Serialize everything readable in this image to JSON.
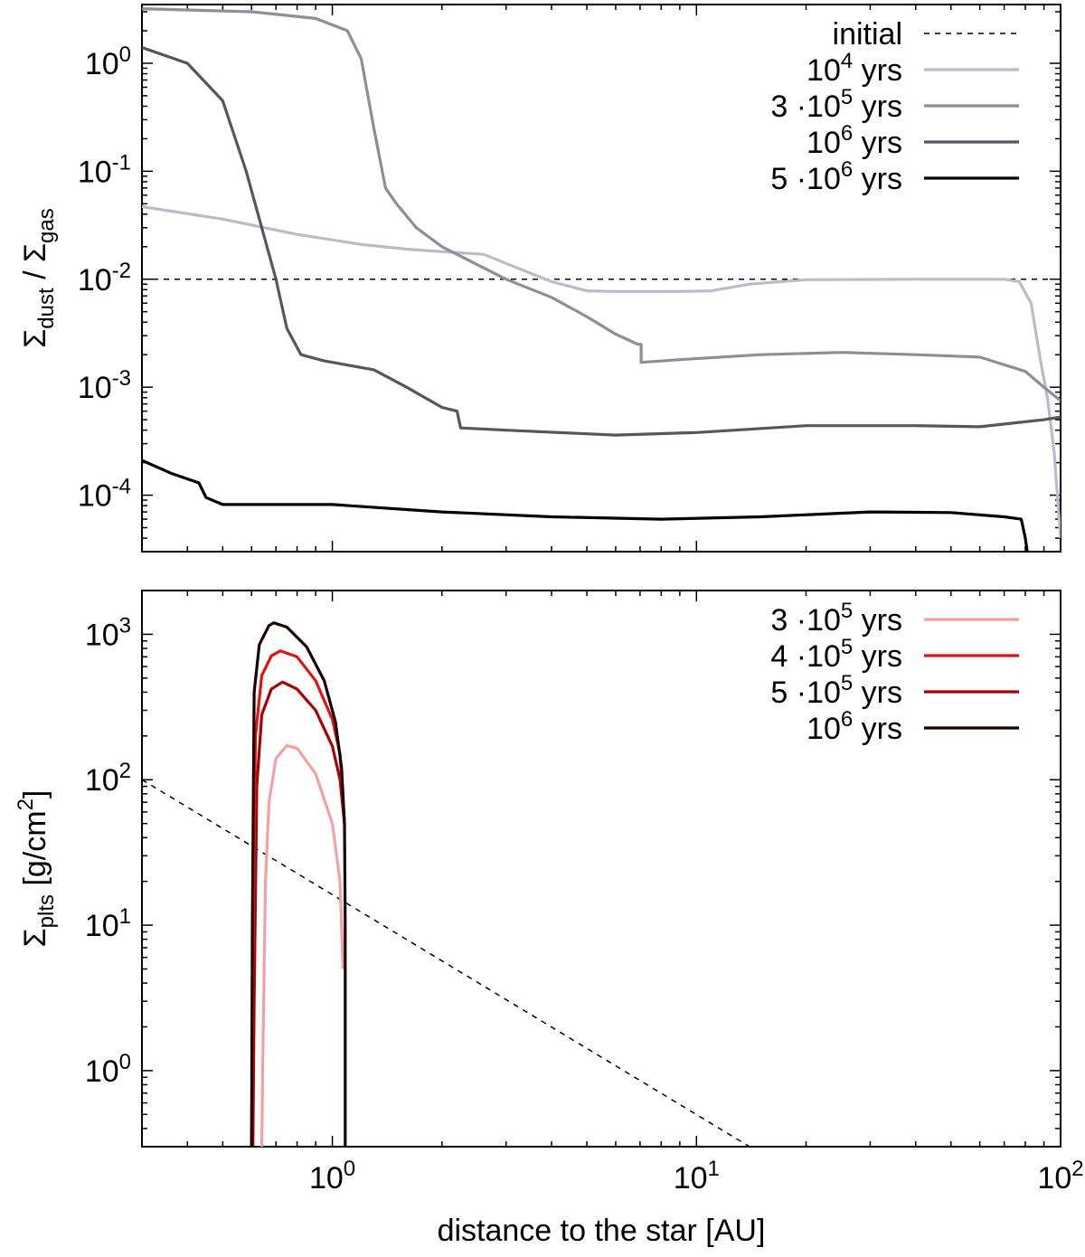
{
  "chart_data": [
    {
      "type": "line",
      "panel": "top",
      "xscale": "log",
      "yscale": "log",
      "xlim": [
        0.3,
        100
      ],
      "ylim": [
        3e-05,
        3.5
      ],
      "ylabel": {
        "base": "Σ",
        "sub1": "dust",
        "sep": " / ",
        "base2": "Σ",
        "sub2": "gas"
      },
      "yticks": [
        {
          "value": 0.0001,
          "base": "10",
          "exp": "-4"
        },
        {
          "value": 0.001,
          "base": "10",
          "exp": "-3"
        },
        {
          "value": 0.01,
          "base": "10",
          "exp": "-2"
        },
        {
          "value": 0.1,
          "base": "10",
          "exp": "-1"
        },
        {
          "value": 1,
          "base": "10",
          "exp": "0"
        }
      ],
      "legend_position": "top-right",
      "legend": [
        {
          "label": {
            "pre": "initial",
            "exp": "",
            "post": ""
          },
          "color": "#000000",
          "dashed": true
        },
        {
          "label": {
            "pre": "10",
            "exp": "4",
            "post": " yrs"
          },
          "color": "#bbbbc8"
        },
        {
          "label": {
            "pre": "3 ·10",
            "exp": "5",
            "post": " yrs"
          },
          "color": "#8e8e98"
        },
        {
          "label": {
            "pre": "10",
            "exp": "6",
            "post": " yrs"
          },
          "color": "#56565f"
        },
        {
          "label": {
            "pre": "5 ·10",
            "exp": "6",
            "post": " yrs"
          },
          "color": "#000000"
        }
      ],
      "series": [
        {
          "color": "#000000",
          "dashed": true,
          "points": [
            [
              0.3,
              0.01
            ],
            [
              100,
              0.01
            ]
          ]
        },
        {
          "color": "#bbbbc8",
          "points": [
            [
              0.3,
              0.047
            ],
            [
              0.5,
              0.036
            ],
            [
              0.8,
              0.026
            ],
            [
              1.2,
              0.021
            ],
            [
              1.6,
              0.019
            ],
            [
              2.0,
              0.018
            ],
            [
              2.6,
              0.017
            ],
            [
              3.0,
              0.014
            ],
            [
              4.0,
              0.0095
            ],
            [
              5.0,
              0.0078
            ],
            [
              6.0,
              0.0077
            ],
            [
              7.0,
              0.0077
            ],
            [
              9.0,
              0.0077
            ],
            [
              11.0,
              0.0078
            ],
            [
              14.0,
              0.009
            ],
            [
              20.0,
              0.0099
            ],
            [
              40.0,
              0.01
            ],
            [
              70.0,
              0.01
            ],
            [
              77.0,
              0.0095
            ],
            [
              83.0,
              0.006
            ],
            [
              88.0,
              0.0018
            ],
            [
              92.0,
              0.0008
            ],
            [
              96.0,
              0.00025
            ],
            [
              100.0,
              4e-05
            ]
          ]
        },
        {
          "color": "#8e8e98",
          "points": [
            [
              0.3,
              3.2
            ],
            [
              0.6,
              3.0
            ],
            [
              0.9,
              2.6
            ],
            [
              1.1,
              2.0
            ],
            [
              1.2,
              1.1
            ],
            [
              1.3,
              0.25
            ],
            [
              1.4,
              0.07
            ],
            [
              1.5,
              0.05
            ],
            [
              1.7,
              0.03
            ],
            [
              2.0,
              0.02
            ],
            [
              3.0,
              0.01
            ],
            [
              4.0,
              0.0068
            ],
            [
              5.0,
              0.0045
            ],
            [
              6.0,
              0.0031
            ],
            [
              6.9,
              0.0025
            ],
            [
              7.05,
              0.0025
            ],
            [
              7.05,
              0.0017
            ],
            [
              9.0,
              0.0018
            ],
            [
              15.0,
              0.002
            ],
            [
              25.0,
              0.0021
            ],
            [
              40.0,
              0.002
            ],
            [
              60.0,
              0.0019
            ],
            [
              80.0,
              0.0014
            ],
            [
              90.0,
              0.001
            ],
            [
              100.0,
              0.00075
            ]
          ]
        },
        {
          "color": "#56565f",
          "points": [
            [
              0.3,
              1.4
            ],
            [
              0.4,
              1.0
            ],
            [
              0.5,
              0.45
            ],
            [
              0.58,
              0.1
            ],
            [
              0.64,
              0.03
            ],
            [
              0.7,
              0.01
            ],
            [
              0.75,
              0.0035
            ],
            [
              0.82,
              0.002
            ],
            [
              0.95,
              0.00175
            ],
            [
              1.3,
              0.00145
            ],
            [
              1.6,
              0.001
            ],
            [
              2.0,
              0.00065
            ],
            [
              2.2,
              0.0006
            ],
            [
              2.25,
              0.00042
            ],
            [
              3.0,
              0.0004
            ],
            [
              6.0,
              0.00036
            ],
            [
              10.0,
              0.00038
            ],
            [
              20.0,
              0.00044
            ],
            [
              40.0,
              0.00044
            ],
            [
              60.0,
              0.00043
            ],
            [
              90.0,
              0.0005
            ],
            [
              100.0,
              0.00053
            ]
          ]
        },
        {
          "color": "#000000",
          "points": [
            [
              0.3,
              0.00021
            ],
            [
              0.36,
              0.00016
            ],
            [
              0.43,
              0.00013
            ],
            [
              0.45,
              9.5e-05
            ],
            [
              0.5,
              8.2e-05
            ],
            [
              0.7,
              8.2e-05
            ],
            [
              1.0,
              8.2e-05
            ],
            [
              2.0,
              7e-05
            ],
            [
              4.0,
              6.3e-05
            ],
            [
              8.0,
              6e-05
            ],
            [
              15.0,
              6.3e-05
            ],
            [
              30.0,
              7e-05
            ],
            [
              50.0,
              6.9e-05
            ],
            [
              70.0,
              6.3e-05
            ],
            [
              78.0,
              6e-05
            ],
            [
              80.0,
              4e-05
            ],
            [
              81.0,
              3e-05
            ]
          ]
        }
      ]
    },
    {
      "type": "line",
      "panel": "bottom",
      "xscale": "log",
      "yscale": "log",
      "xlim": [
        0.3,
        100
      ],
      "ylim": [
        0.3,
        2000
      ],
      "xlabel": "distance to the star [AU]",
      "xticks": [
        {
          "value": 1,
          "base": "10",
          "exp": "0"
        },
        {
          "value": 10,
          "base": "10",
          "exp": "1"
        },
        {
          "value": 100,
          "base": "10",
          "exp": "2"
        }
      ],
      "ylabel": {
        "base": "Σ",
        "sub": "plts",
        "text": " [g/cm",
        "exp": "2",
        "end": "]"
      },
      "yticks": [
        {
          "value": 1,
          "base": "10",
          "exp": "0"
        },
        {
          "value": 10,
          "base": "10",
          "exp": "1"
        },
        {
          "value": 100,
          "base": "10",
          "exp": "2"
        },
        {
          "value": 1000,
          "base": "10",
          "exp": "3"
        }
      ],
      "legend_position": "top-right",
      "legend": [
        {
          "label": {
            "pre": "3 ·10",
            "exp": "5",
            "post": " yrs"
          },
          "color": "#f4a0a0"
        },
        {
          "label": {
            "pre": "4 ·10",
            "exp": "5",
            "post": " yrs"
          },
          "color": "#e01414"
        },
        {
          "label": {
            "pre": "5 ·10",
            "exp": "5",
            "post": " yrs"
          },
          "color": "#aa0000"
        },
        {
          "label": {
            "pre": "10",
            "exp": "6",
            "post": " yrs"
          },
          "color": "#1a0000"
        }
      ],
      "series": [
        {
          "color": "#000000",
          "dashed": true,
          "points": [
            [
              0.3,
              100
            ],
            [
              14.0,
              0.3
            ]
          ]
        },
        {
          "color": "#f4a0a0",
          "points": [
            [
              0.64,
              0.3
            ],
            [
              0.645,
              1.5
            ],
            [
              0.655,
              20.0
            ],
            [
              0.67,
              70.0
            ],
            [
              0.7,
              140.0
            ],
            [
              0.75,
              172.0
            ],
            [
              0.8,
              165.0
            ],
            [
              0.9,
              110.0
            ],
            [
              1.0,
              50.0
            ],
            [
              1.05,
              20.0
            ],
            [
              1.07,
              5.0
            ]
          ]
        },
        {
          "color": "#aa0000",
          "points": [
            [
              0.605,
              0.3
            ],
            [
              0.61,
              3.0
            ],
            [
              0.62,
              90.0
            ],
            [
              0.64,
              280.0
            ],
            [
              0.68,
              420.0
            ],
            [
              0.73,
              470.0
            ],
            [
              0.8,
              420.0
            ],
            [
              0.9,
              300.0
            ],
            [
              1.0,
              170.0
            ],
            [
              1.05,
              100.0
            ],
            [
              1.08,
              50.0
            ]
          ]
        },
        {
          "color": "#e01414",
          "points": [
            [
              0.6,
              0.3
            ],
            [
              0.605,
              5.0
            ],
            [
              0.615,
              200.0
            ],
            [
              0.64,
              520.0
            ],
            [
              0.68,
              710.0
            ],
            [
              0.72,
              770.0
            ],
            [
              0.8,
              700.0
            ],
            [
              0.9,
              480.0
            ],
            [
              1.0,
              260.0
            ],
            [
              1.05,
              150.0
            ],
            [
              1.08,
              50.0
            ]
          ]
        },
        {
          "color": "#1a0000",
          "points": [
            [
              0.6,
              0.3
            ],
            [
              0.603,
              10.0
            ],
            [
              0.61,
              400.0
            ],
            [
              0.63,
              850.0
            ],
            [
              0.67,
              1150.0
            ],
            [
              0.69,
              1200.0
            ],
            [
              0.75,
              1120.0
            ],
            [
              0.85,
              820.0
            ],
            [
              0.95,
              480.0
            ],
            [
              1.02,
              250.0
            ],
            [
              1.06,
              120.0
            ],
            [
              1.08,
              50.0
            ],
            [
              1.085,
              10.0
            ],
            [
              1.085,
              0.3
            ]
          ]
        }
      ]
    }
  ]
}
